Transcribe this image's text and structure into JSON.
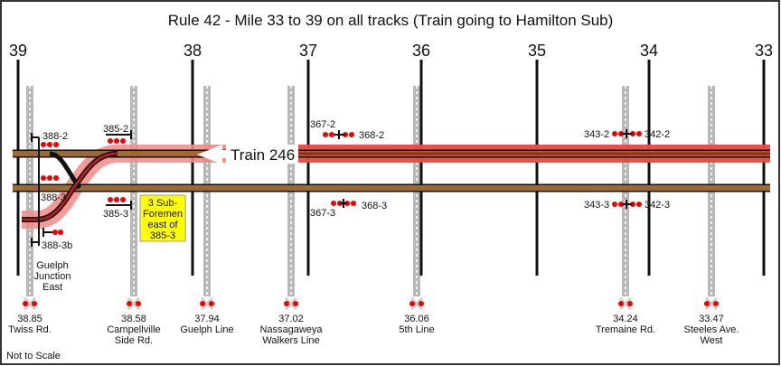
{
  "title": "Rule 42 - Mile 33 to 39 on all tracks (Train going to Hamilton Sub)",
  "mileposts": [
    "39",
    "38",
    "37",
    "36",
    "35",
    "34",
    "33"
  ],
  "train_label": "Train 246",
  "signals": {
    "s388_2": "388-2",
    "s388_3": "388-3",
    "s388_3b": "388-3b",
    "s385_2": "385-2",
    "s385_3": "385-3",
    "s367_2": "367-2",
    "s368_2": "368-2",
    "s367_3": "367-3",
    "s368_3": "368-3",
    "s343_2": "343-2",
    "s342_2": "342-2",
    "s343_3": "343-3",
    "s342_3": "342-3"
  },
  "location_label": [
    "Guelph",
    "Junction",
    "East"
  ],
  "note_box": [
    "3 Sub-",
    "Foremen",
    "east of",
    "385-3"
  ],
  "crossings": [
    {
      "mile": "38.85",
      "name": [
        "Twiss Rd."
      ]
    },
    {
      "mile": "38.58",
      "name": [
        "Campellville",
        "Side Rd."
      ]
    },
    {
      "mile": "37.94",
      "name": [
        "Guelph Line"
      ]
    },
    {
      "mile": "37.02",
      "name": [
        "Nassagaweya",
        "Walkers Line"
      ]
    },
    {
      "mile": "36.06",
      "name": [
        "5th Line"
      ]
    },
    {
      "mile": "34.24",
      "name": [
        "Tremaine Rd."
      ]
    },
    {
      "mile": "33.47",
      "name": [
        "Steeles Ave.",
        "West"
      ]
    }
  ],
  "footer_note": "Not to Scale",
  "colors": {
    "track": "#8b5a2b",
    "occupancy": "#e8332e",
    "signal": "#e00000",
    "note_bg": "#ffff00"
  }
}
